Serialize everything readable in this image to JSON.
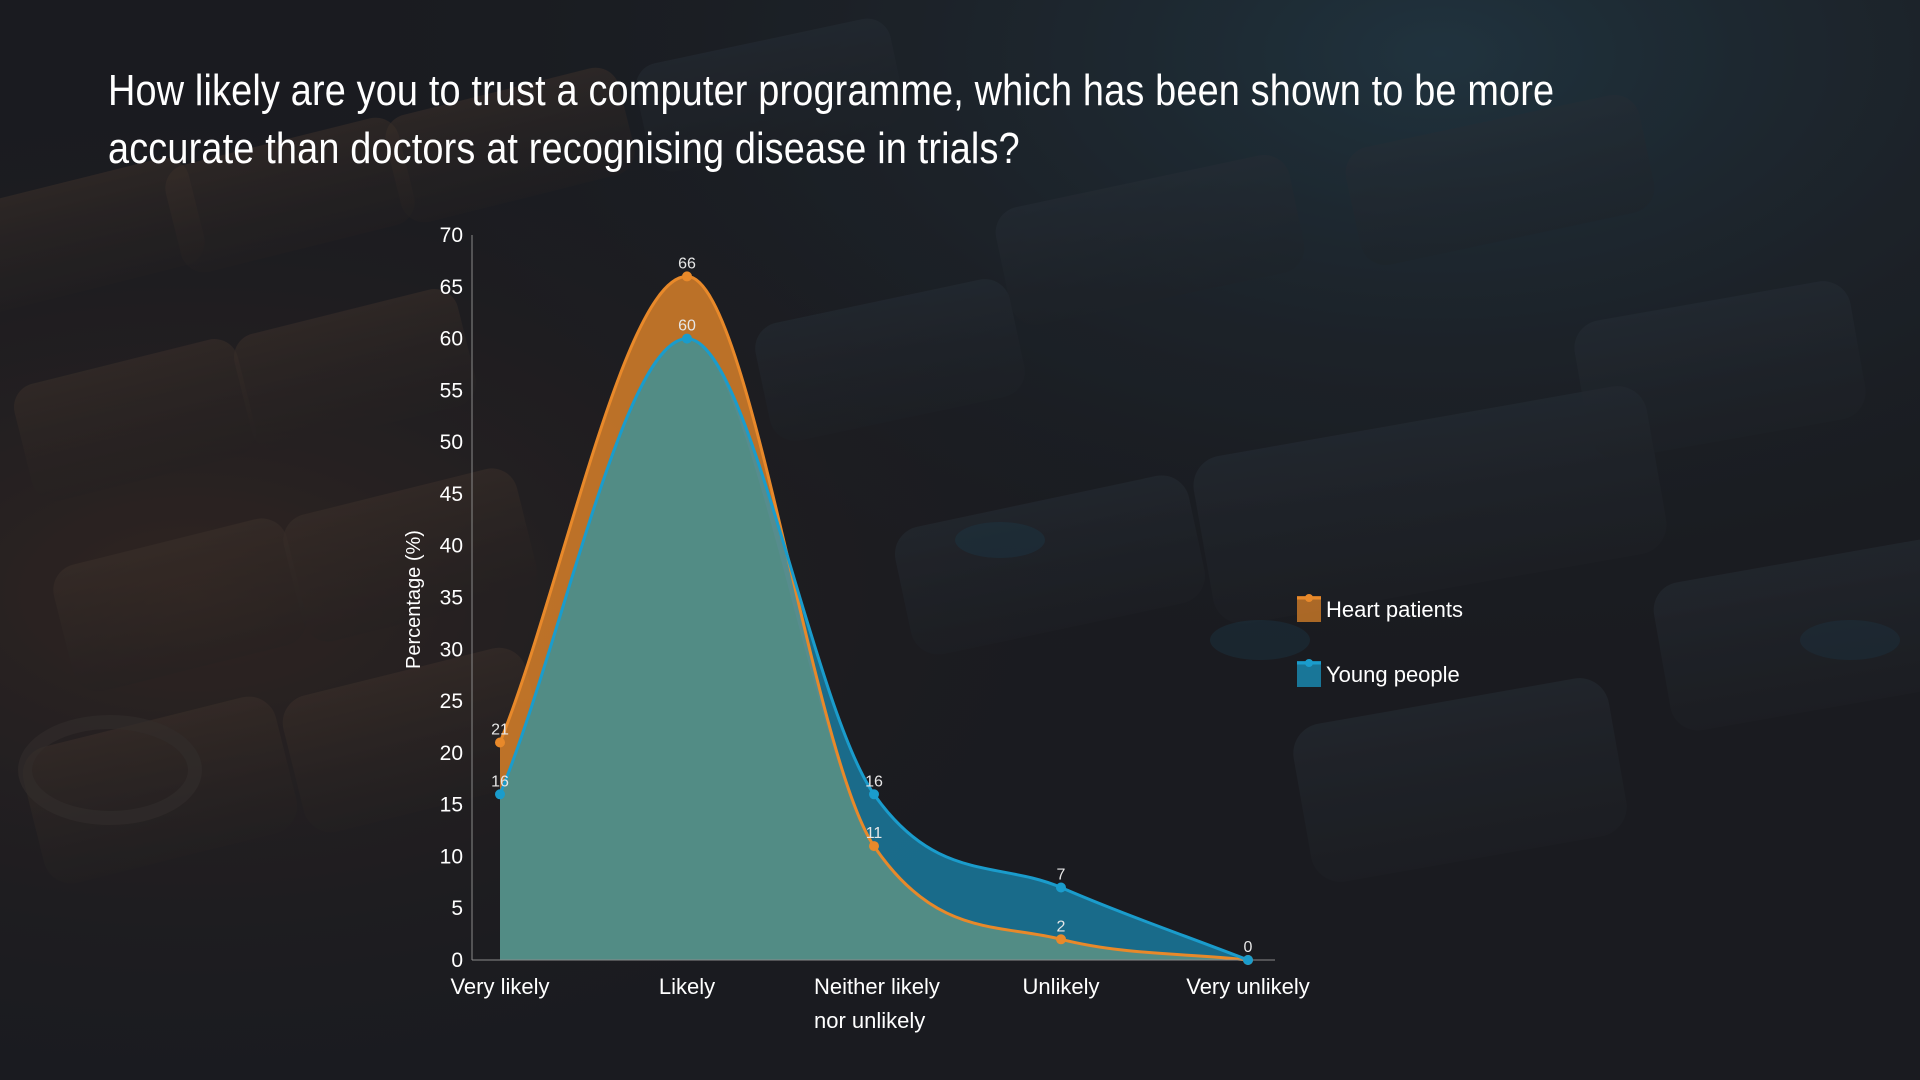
{
  "title": "How likely are you to trust a computer programme, which has been shown to be more accurate than doctors at recognising disease in trials?",
  "colors": {
    "background": "#1c1d22",
    "heart_patients": "#e8892a",
    "young_people": "#1a9ccc",
    "overlap_fill": "#4e8c80",
    "text": "#ffffff"
  },
  "chart_data": {
    "type": "area",
    "title": "How likely are you to trust a computer programme, which has been shown to be more accurate than doctors at recognising disease in trials?",
    "xlabel": "",
    "ylabel": "Percentage (%)",
    "ylim": [
      0,
      70
    ],
    "yticks": [
      0,
      5,
      10,
      15,
      20,
      25,
      30,
      35,
      40,
      45,
      50,
      55,
      60,
      65,
      70
    ],
    "grid": false,
    "legend_position": "right",
    "categories": [
      [
        "Very likely"
      ],
      [
        "Likely"
      ],
      [
        "Neither likely",
        "nor unlikely"
      ],
      [
        "Unlikely"
      ],
      [
        "Very unlikely"
      ]
    ],
    "series": [
      {
        "name": "Heart patients",
        "color": "#e8892a",
        "values": [
          21,
          66,
          11,
          2,
          0
        ],
        "labels": [
          "21",
          "66",
          "11",
          "2",
          "0"
        ]
      },
      {
        "name": "Young people",
        "color": "#1a9ccc",
        "values": [
          16,
          60,
          16,
          7,
          0
        ],
        "labels": [
          "16",
          "60",
          "16",
          "7",
          "0"
        ]
      }
    ]
  }
}
